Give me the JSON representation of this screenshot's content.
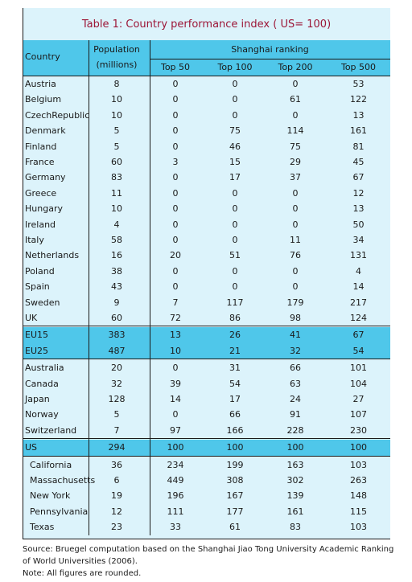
{
  "title": "Table 1: Country performance index ( US= 100)",
  "header": {
    "country": "Country",
    "population_line1": "Population",
    "population_line2": "(millions)",
    "shanghai": "Shanghai ranking",
    "top50": "Top 50",
    "top100": "Top 100",
    "top200": "Top 200",
    "top500": "Top 500"
  },
  "groups": [
    {
      "highlight": false,
      "sub": false,
      "rows": [
        {
          "name": "Austria",
          "pop": "8",
          "t50": "0",
          "t100": "0",
          "t200": "0",
          "t500": "53"
        },
        {
          "name": "Belgium",
          "pop": "10",
          "t50": "0",
          "t100": "0",
          "t200": "61",
          "t500": "122"
        },
        {
          "name": "CzechRepublic",
          "pop": "10",
          "t50": "0",
          "t100": "0",
          "t200": "0",
          "t500": "13"
        },
        {
          "name": "Denmark",
          "pop": "5",
          "t50": "0",
          "t100": "75",
          "t200": "114",
          "t500": "161"
        },
        {
          "name": "Finland",
          "pop": "5",
          "t50": "0",
          "t100": "46",
          "t200": "75",
          "t500": "81"
        },
        {
          "name": "France",
          "pop": "60",
          "t50": "3",
          "t100": "15",
          "t200": "29",
          "t500": "45"
        },
        {
          "name": "Germany",
          "pop": "83",
          "t50": "0",
          "t100": "17",
          "t200": "37",
          "t500": "67"
        },
        {
          "name": "Greece",
          "pop": "11",
          "t50": "0",
          "t100": "0",
          "t200": "0",
          "t500": "12"
        },
        {
          "name": "Hungary",
          "pop": "10",
          "t50": "0",
          "t100": "0",
          "t200": "0",
          "t500": "13"
        },
        {
          "name": "Ireland",
          "pop": "4",
          "t50": "0",
          "t100": "0",
          "t200": "0",
          "t500": "50"
        },
        {
          "name": "Italy",
          "pop": "58",
          "t50": "0",
          "t100": "0",
          "t200": "11",
          "t500": "34"
        },
        {
          "name": "Netherlands",
          "pop": "16",
          "t50": "20",
          "t100": "51",
          "t200": "76",
          "t500": "131"
        },
        {
          "name": "Poland",
          "pop": "38",
          "t50": "0",
          "t100": "0",
          "t200": "0",
          "t500": "4"
        },
        {
          "name": "Spain",
          "pop": "43",
          "t50": "0",
          "t100": "0",
          "t200": "0",
          "t500": "14"
        },
        {
          "name": "Sweden",
          "pop": "9",
          "t50": "7",
          "t100": "117",
          "t200": "179",
          "t500": "217"
        },
        {
          "name": "UK",
          "pop": "60",
          "t50": "72",
          "t100": "86",
          "t200": "98",
          "t500": "124"
        }
      ]
    },
    {
      "highlight": true,
      "sub": false,
      "rows": [
        {
          "name": "EU15",
          "pop": "383",
          "t50": "13",
          "t100": "26",
          "t200": "41",
          "t500": "67"
        },
        {
          "name": "EU25",
          "pop": "487",
          "t50": "10",
          "t100": "21",
          "t200": "32",
          "t500": "54"
        }
      ]
    },
    {
      "highlight": false,
      "sub": false,
      "rows": [
        {
          "name": "Australia",
          "pop": "20",
          "t50": "0",
          "t100": "31",
          "t200": "66",
          "t500": "101"
        },
        {
          "name": "Canada",
          "pop": "32",
          "t50": "39",
          "t100": "54",
          "t200": "63",
          "t500": "104"
        },
        {
          "name": "Japan",
          "pop": "128",
          "t50": "14",
          "t100": "17",
          "t200": "24",
          "t500": "27"
        },
        {
          "name": "Norway",
          "pop": "5",
          "t50": "0",
          "t100": "66",
          "t200": "91",
          "t500": "107"
        },
        {
          "name": "Switzerland",
          "pop": "7",
          "t50": "97",
          "t100": "166",
          "t200": "228",
          "t500": "230"
        }
      ]
    },
    {
      "highlight": true,
      "sub": false,
      "rows": [
        {
          "name": "US",
          "pop": "294",
          "t50": "100",
          "t100": "100",
          "t200": "100",
          "t500": "100"
        }
      ]
    },
    {
      "highlight": false,
      "sub": true,
      "rows": [
        {
          "name": "California",
          "pop": "36",
          "t50": "234",
          "t100": "199",
          "t200": "163",
          "t500": "103"
        },
        {
          "name": "Massachusetts",
          "pop": "6",
          "t50": "449",
          "t100": "308",
          "t200": "302",
          "t500": "263"
        },
        {
          "name": "New York",
          "pop": "19",
          "t50": "196",
          "t100": "167",
          "t200": "139",
          "t500": "148"
        },
        {
          "name": "Pennsylvania",
          "pop": "12",
          "t50": "111",
          "t100": "177",
          "t200": "161",
          "t500": "115"
        },
        {
          "name": "Texas",
          "pop": "23",
          "t50": "33",
          "t100": "61",
          "t200": "83",
          "t500": "103"
        }
      ]
    }
  ],
  "footer": {
    "source": "Source: Bruegel computation based on the Shanghai Jiao Tong University Academic Ranking of World Universities (2006).",
    "note": "Note: All figures are rounded."
  },
  "colors": {
    "panel": "#dcf3fb",
    "band": "#4fc7ea",
    "title": "#9c1637"
  }
}
